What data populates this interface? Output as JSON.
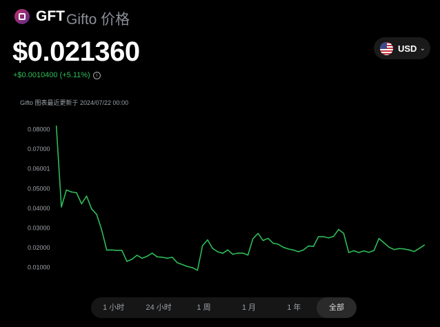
{
  "header": {
    "symbol": "GFT",
    "name": "Gifto 价格",
    "price": "$0.021360",
    "change": "+$0.0010400 (+5.11%)",
    "info_icon": "info-icon",
    "updated": "Gifto 图表最近更新于 2024/07/22 00:00"
  },
  "currency": {
    "label": "USD",
    "flag": "us-flag-icon"
  },
  "ranges": [
    {
      "label": "1 小时"
    },
    {
      "label": "24 小时"
    },
    {
      "label": "1 周"
    },
    {
      "label": "1 月"
    },
    {
      "label": "1 年"
    },
    {
      "label": "全部",
      "active": true
    }
  ],
  "colors": {
    "line": "#2ebd58",
    "up": "#2ebd58"
  },
  "chart_data": {
    "type": "line",
    "ytick_labels": [
      "0.08000",
      "0.07000",
      "0.06001",
      "0.05000",
      "0.04000",
      "0.03000",
      "0.02000",
      "0.01000"
    ],
    "ytick_values": [
      0.08,
      0.07,
      0.06001,
      0.05,
      0.04,
      0.03,
      0.02,
      0.01
    ],
    "ylim": [
      0.0055,
      0.0835
    ],
    "grid": false,
    "values": [
      0.0815,
      0.0405,
      0.0491,
      0.0481,
      0.0477,
      0.0421,
      0.046,
      0.0395,
      0.0367,
      0.0288,
      0.0186,
      0.0187,
      0.0185,
      0.0185,
      0.0129,
      0.014,
      0.016,
      0.0145,
      0.0155,
      0.0171,
      0.0152,
      0.015,
      0.0145,
      0.015,
      0.0122,
      0.0113,
      0.0103,
      0.0097,
      0.0084,
      0.0209,
      0.0238,
      0.0195,
      0.0178,
      0.017,
      0.0187,
      0.0165,
      0.0171,
      0.0171,
      0.0161,
      0.0244,
      0.0271,
      0.0235,
      0.0246,
      0.0221,
      0.0216,
      0.0201,
      0.0192,
      0.0187,
      0.0178,
      0.0187,
      0.0207,
      0.0205,
      0.0254,
      0.0254,
      0.0248,
      0.0256,
      0.0291,
      0.0271,
      0.0174,
      0.0183,
      0.0174,
      0.0182,
      0.0175,
      0.0184,
      0.0245,
      0.0223,
      0.0201,
      0.0189,
      0.0194,
      0.0192,
      0.0187,
      0.0179,
      0.0195,
      0.0212
    ]
  }
}
